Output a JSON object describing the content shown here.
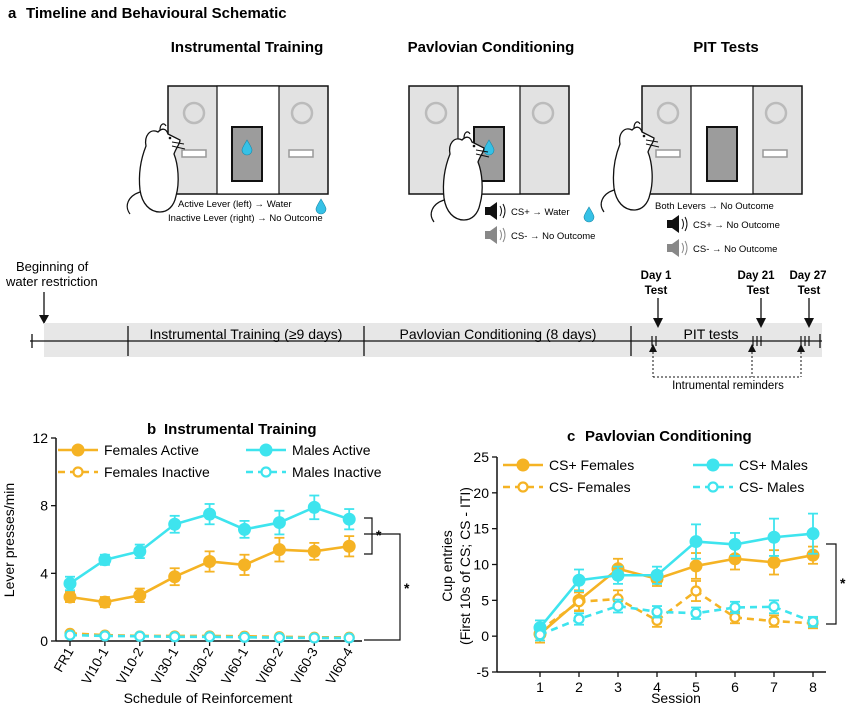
{
  "panel_a": {
    "label": "a",
    "title": "Timeline and Behavioural Schematic",
    "schematics": {
      "instrumental": {
        "title": "Instrumental Training",
        "line1": "Active Lever (left) → Water",
        "line2": "Inactive Lever (right) → No Outcome"
      },
      "pavlovian": {
        "title": "Pavlovian Conditioning",
        "line1": "CS+ → Water",
        "line2": "CS-  → No Outcome"
      },
      "pit": {
        "title": "PIT Tests",
        "line1": "Both Levers → No Outcome",
        "line2": "CS+ → No Outcome",
        "line3": "CS-  → No Outcome"
      }
    },
    "timeline": {
      "start_label_1": "Beginning of",
      "start_label_2": "water restriction",
      "seg_instrumental": "Instrumental Training (≥9 days)",
      "seg_pavlovian": "Pavlovian Conditioning (8 days)",
      "seg_pit": "PIT tests",
      "day1": "Day 1",
      "day21": "Day 21",
      "day27": "Day 27",
      "test": "Test",
      "reminders": "Intrumental reminders"
    }
  },
  "colors": {
    "females": "#f5b324",
    "males": "#3ee4ee",
    "water": "#36c1e6"
  },
  "chart_data": [
    {
      "id": "b",
      "label": "b",
      "type": "line",
      "title": "Instrumental Training",
      "xlabel": "Schedule of Reinforcement",
      "ylabel": "Lever presses/min",
      "categories": [
        "FR1",
        "VI10-1",
        "VI10-2",
        "VI30-1",
        "VI30-2",
        "VI60-1",
        "VI60-2",
        "VI60-3",
        "VI60-4"
      ],
      "ylim": [
        0,
        12
      ],
      "yticks": [
        0,
        4,
        8,
        12
      ],
      "series": [
        {
          "name": "Females Active",
          "color": "females",
          "dashed": false,
          "filled": true,
          "values": [
            2.6,
            2.3,
            2.7,
            3.8,
            4.7,
            4.5,
            5.4,
            5.3,
            5.6
          ],
          "errors": [
            0.3,
            0.3,
            0.4,
            0.5,
            0.6,
            0.6,
            0.7,
            0.5,
            0.6
          ]
        },
        {
          "name": "Females Inactive",
          "color": "females",
          "dashed": true,
          "filled": false,
          "values": [
            0.45,
            0.35,
            0.3,
            0.3,
            0.3,
            0.28,
            0.25,
            0.22,
            0.22
          ],
          "errors": [
            0.1,
            0.08,
            0.08,
            0.07,
            0.07,
            0.07,
            0.06,
            0.06,
            0.06
          ]
        },
        {
          "name": "Males Active",
          "color": "males",
          "dashed": false,
          "filled": true,
          "values": [
            3.4,
            4.8,
            5.3,
            6.9,
            7.5,
            6.6,
            7.0,
            7.9,
            7.2
          ],
          "errors": [
            0.4,
            0.3,
            0.4,
            0.5,
            0.6,
            0.5,
            0.7,
            0.7,
            0.6
          ]
        },
        {
          "name": "Males Inactive",
          "color": "males",
          "dashed": true,
          "filled": false,
          "values": [
            0.35,
            0.3,
            0.28,
            0.25,
            0.25,
            0.22,
            0.2,
            0.18,
            0.18
          ],
          "errors": [
            0.08,
            0.07,
            0.06,
            0.06,
            0.06,
            0.05,
            0.05,
            0.05,
            0.05
          ]
        }
      ],
      "legend": [
        "Females Active",
        "Females Inactive",
        "Males Active",
        "Males Inactive"
      ],
      "sig": [
        "*",
        "*"
      ]
    },
    {
      "id": "c",
      "label": "c",
      "type": "line",
      "title": "Pavlovian Conditioning",
      "xlabel": "Session",
      "ylabel": "Cup entries",
      "ylabel2": "(First 10s of CS; CS - ITI)",
      "categories": [
        "1",
        "2",
        "3",
        "4",
        "5",
        "6",
        "7",
        "8"
      ],
      "ylim": [
        -5,
        25
      ],
      "yticks": [
        -5,
        0,
        5,
        10,
        15,
        20,
        25
      ],
      "series": [
        {
          "name": "CS+ Females",
          "color": "females",
          "dashed": false,
          "filled": true,
          "values": [
            0.3,
            5.0,
            9.4,
            8.0,
            9.8,
            10.8,
            10.3,
            11.3
          ],
          "errors": [
            1.2,
            1.4,
            1.4,
            1.0,
            1.8,
            1.5,
            1.7,
            1.2
          ]
        },
        {
          "name": "CS- Females",
          "color": "females",
          "dashed": true,
          "filled": false,
          "values": [
            0.8,
            4.8,
            5.2,
            2.2,
            6.3,
            2.6,
            2.1,
            1.8
          ],
          "errors": [
            0.8,
            1.3,
            1.2,
            0.9,
            1.4,
            0.8,
            0.8,
            0.7
          ]
        },
        {
          "name": "CS+ Males",
          "color": "males",
          "dashed": false,
          "filled": true,
          "values": [
            1.2,
            7.8,
            8.5,
            8.5,
            13.2,
            12.8,
            13.8,
            14.3
          ],
          "errors": [
            1.0,
            1.5,
            1.2,
            1.2,
            2.4,
            1.6,
            2.6,
            2.8
          ]
        },
        {
          "name": "CS- Males",
          "color": "males",
          "dashed": true,
          "filled": false,
          "values": [
            0.2,
            2.4,
            4.2,
            3.4,
            3.2,
            4.0,
            4.1,
            2.0
          ],
          "errors": [
            0.8,
            0.8,
            0.9,
            0.8,
            0.8,
            0.8,
            0.9,
            0.7
          ]
        }
      ],
      "legend": [
        "CS+ Females",
        "CS- Females",
        "CS+ Males",
        "CS- Males"
      ],
      "sig": [
        "*"
      ]
    }
  ]
}
